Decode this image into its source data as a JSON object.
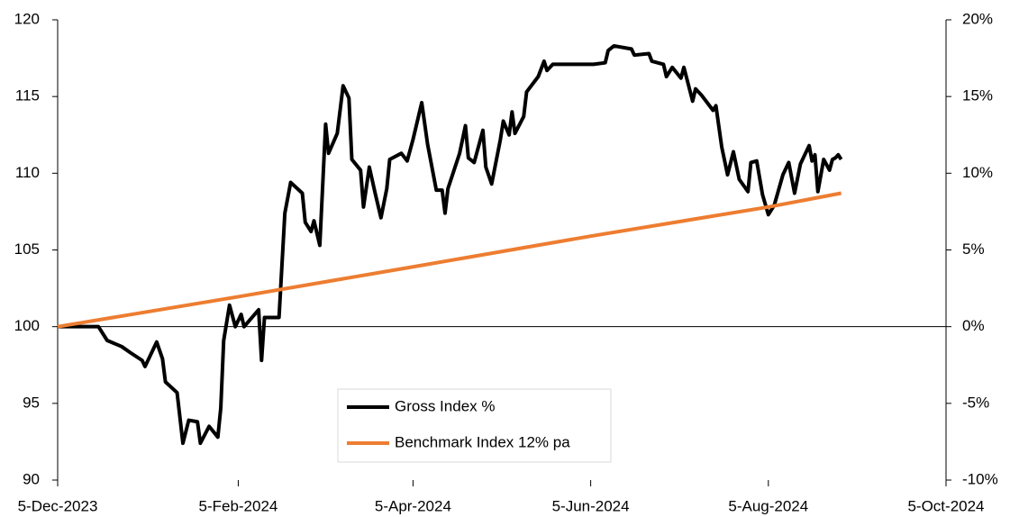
{
  "chart_data": {
    "type": "line",
    "xlim": [
      "2023-12-05",
      "2024-10-05"
    ],
    "xticks": [
      {
        "value": "2023-12-05",
        "label": "5-Dec-2023"
      },
      {
        "value": "2024-02-05",
        "label": "5-Feb-2024"
      },
      {
        "value": "2024-04-05",
        "label": "5-Apr-2024"
      },
      {
        "value": "2024-06-05",
        "label": "5-Jun-2024"
      },
      {
        "value": "2024-08-05",
        "label": "5-Aug-2024"
      },
      {
        "value": "2024-10-05",
        "label": "5-Oct-2024"
      }
    ],
    "ylim": [
      90,
      120
    ],
    "yticks": [
      90,
      95,
      100,
      105,
      110,
      115,
      120
    ],
    "y2lim": [
      -10,
      20
    ],
    "y2ticks": [
      {
        "value": -10,
        "label": "-10%"
      },
      {
        "value": -5,
        "label": "-5%"
      },
      {
        "value": 0,
        "label": "0%"
      },
      {
        "value": 5,
        "label": "5%"
      },
      {
        "value": 10,
        "label": "10%"
      },
      {
        "value": 15,
        "label": "15%"
      },
      {
        "value": 20,
        "label": "20%"
      }
    ],
    "grid": false,
    "legend": "bottom-center",
    "series": [
      {
        "name": "Gross Index %",
        "color": "#000000",
        "x": [
          "2023-12-05",
          "2023-12-19",
          "2023-12-22",
          "2023-12-27",
          "2023-12-30",
          "2024-01-03",
          "2024-01-04",
          "2024-01-08",
          "2024-01-10",
          "2024-01-11",
          "2024-01-15",
          "2024-01-17",
          "2024-01-19",
          "2024-01-22",
          "2024-01-23",
          "2024-01-26",
          "2024-01-29",
          "2024-01-30",
          "2024-01-31",
          "2024-02-02",
          "2024-02-04",
          "2024-02-06",
          "2024-02-07",
          "2024-02-12",
          "2024-02-13",
          "2024-02-14",
          "2024-02-19",
          "2024-02-21",
          "2024-02-23",
          "2024-02-27",
          "2024-02-28",
          "2024-03-01",
          "2024-03-02",
          "2024-03-04",
          "2024-03-06",
          "2024-03-07",
          "2024-03-10",
          "2024-03-12",
          "2024-03-14",
          "2024-03-15",
          "2024-03-18",
          "2024-03-19",
          "2024-03-21",
          "2024-03-23",
          "2024-03-25",
          "2024-03-27",
          "2024-03-28",
          "2024-04-01",
          "2024-04-03",
          "2024-04-05",
          "2024-04-08",
          "2024-04-10",
          "2024-04-13",
          "2024-04-15",
          "2024-04-16",
          "2024-04-17",
          "2024-04-21",
          "2024-04-23",
          "2024-04-24",
          "2024-04-26",
          "2024-04-29",
          "2024-04-30",
          "2024-05-02",
          "2024-05-05",
          "2024-05-06",
          "2024-05-08",
          "2024-05-09",
          "2024-05-10",
          "2024-05-13",
          "2024-05-14",
          "2024-05-18",
          "2024-05-20",
          "2024-05-21",
          "2024-05-23",
          "2024-06-06",
          "2024-06-10",
          "2024-06-11",
          "2024-06-13",
          "2024-06-19",
          "2024-06-20",
          "2024-06-25",
          "2024-06-26",
          "2024-06-30",
          "2024-07-01",
          "2024-07-03",
          "2024-07-06",
          "2024-07-07",
          "2024-07-10",
          "2024-07-11",
          "2024-07-13",
          "2024-07-17",
          "2024-07-18",
          "2024-07-20",
          "2024-07-22",
          "2024-07-24",
          "2024-07-26",
          "2024-07-29",
          "2024-07-30",
          "2024-08-01",
          "2024-08-03",
          "2024-08-05",
          "2024-08-07",
          "2024-08-10",
          "2024-08-12",
          "2024-08-14",
          "2024-08-16",
          "2024-08-19",
          "2024-08-20",
          "2024-08-21",
          "2024-08-22",
          "2024-08-24",
          "2024-08-26",
          "2024-08-27",
          "2024-08-28",
          "2024-08-29",
          "2024-08-30"
        ],
        "values": [
          100,
          100,
          99.1,
          98.7,
          98.3,
          97.8,
          97.4,
          99.0,
          97.9,
          96.4,
          95.7,
          92.4,
          93.9,
          93.8,
          92.4,
          93.5,
          92.8,
          94.7,
          99.1,
          101.4,
          100.0,
          100.8,
          100.0,
          101.1,
          97.8,
          100.6,
          100.6,
          107.4,
          109.4,
          108.7,
          106.8,
          106.2,
          106.9,
          105.3,
          113.2,
          111.3,
          112.6,
          115.7,
          114.9,
          110.9,
          110.2,
          107.8,
          110.4,
          108.7,
          107.1,
          109.0,
          110.9,
          111.3,
          110.8,
          112.2,
          114.6,
          111.9,
          108.9,
          108.9,
          107.4,
          109.0,
          111.3,
          113.1,
          111.0,
          110.7,
          112.8,
          110.4,
          109.3,
          112.2,
          113.4,
          112.5,
          114.0,
          112.6,
          113.7,
          115.3,
          116.3,
          117.3,
          116.7,
          117.1,
          117.1,
          117.2,
          118.0,
          118.3,
          118.1,
          117.7,
          117.8,
          117.3,
          117.1,
          116.3,
          116.9,
          116.2,
          116.9,
          114.7,
          115.5,
          115.1,
          114.1,
          114.4,
          111.7,
          109.9,
          111.4,
          109.6,
          108.8,
          110.7,
          110.8,
          108.6,
          107.3,
          107.9,
          109.9,
          110.7,
          108.7,
          110.6,
          111.8,
          110.8,
          111.2,
          108.8,
          110.9,
          110.2,
          110.9,
          111.0,
          111.2,
          110.9
        ]
      },
      {
        "name": "Benchmark Index 12% pa",
        "color": "#ed7d31",
        "x": [
          "2023-12-05",
          "2024-02-05",
          "2024-04-05",
          "2024-06-05",
          "2024-08-05",
          "2024-08-30"
        ],
        "values": [
          100,
          101.95,
          103.9,
          105.9,
          107.8,
          108.7
        ]
      }
    ]
  }
}
